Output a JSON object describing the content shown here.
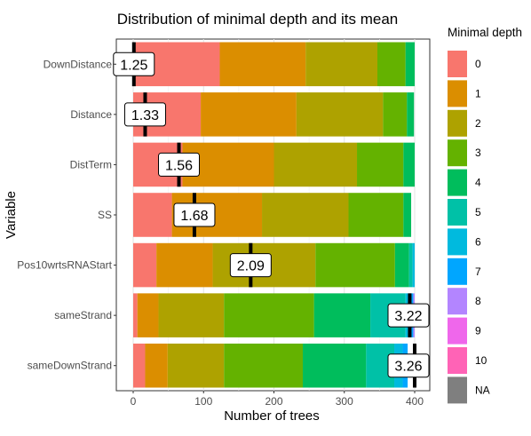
{
  "chart_data": {
    "type": "bar",
    "orientation": "horizontal",
    "stacked": true,
    "title": "Distribution of minimal depth and its mean",
    "xlabel": "Number of trees",
    "ylabel": "Variable",
    "xlim": [
      0,
      400
    ],
    "xticks": [
      "0",
      "100",
      "200",
      "300",
      "400"
    ],
    "grid": true,
    "legend_position": "right",
    "legend_title": "Minimal depth",
    "categories": [
      "DownDistance",
      "Distance",
      "DistTerm",
      "SS",
      "Pos10wrtsRNAStart",
      "sameStrand",
      "sameDownStrand"
    ],
    "series": [
      {
        "name": "0",
        "color": "#F8766D",
        "values": [
          123,
          96,
          0,
          55,
          33,
          6,
          17
        ]
      },
      {
        "name": "1",
        "color": "#DB8E00",
        "values": [
          122,
          136,
          0,
          128,
          80,
          30,
          32
        ]
      },
      {
        "name": "2",
        "color": "#AEA200",
        "values": [
          102,
          123,
          0,
          123,
          146,
          93,
          80
        ]
      },
      {
        "name": "3",
        "color": "#64B200",
        "values": [
          40,
          34,
          0,
          78,
          113,
          128,
          112
        ]
      },
      {
        "name": "4",
        "color": "#00BD5C",
        "values": [
          13,
          10,
          0,
          11,
          20,
          80,
          90
        ]
      },
      {
        "name": "5",
        "color": "#00C1A7",
        "values": [
          0,
          0,
          0,
          0,
          5,
          50,
          40
        ]
      },
      {
        "name": "6",
        "color": "#00BADE",
        "values": [
          0,
          0,
          0,
          0,
          3,
          8,
          12
        ]
      },
      {
        "name": "7",
        "color": "#00A6FF",
        "values": [
          0,
          0,
          0,
          0,
          0,
          3,
          7
        ]
      },
      {
        "name": "8",
        "color": "#B385FF",
        "values": [
          0,
          0,
          0,
          0,
          0,
          2,
          0
        ]
      },
      {
        "name": "9",
        "color": "#EF67EB",
        "values": [
          0,
          0,
          0,
          0,
          0,
          0,
          0
        ]
      },
      {
        "name": "10",
        "color": "#FF63B6",
        "values": [
          0,
          0,
          0,
          0,
          0,
          0,
          0
        ]
      },
      {
        "name": "NA",
        "color": "#7F7F7F",
        "values": [
          0,
          0,
          0,
          0,
          0,
          0,
          0
        ]
      }
    ],
    "segments_override": {
      "DistTerm": [
        [
          0,
          70,
          "#F8766D"
        ],
        [
          70,
          200,
          "#DB8E00"
        ],
        [
          200,
          318,
          "#AEA200"
        ],
        [
          318,
          384,
          "#64B200"
        ],
        [
          384,
          400,
          "#00BD5C"
        ]
      ]
    },
    "mean_labels": [
      "1.25",
      "1.33",
      "1.56",
      "1.68",
      "2.09",
      "3.22",
      "3.26"
    ],
    "mean_positions": [
      1,
      17,
      65,
      87,
      167,
      393,
      400
    ]
  }
}
